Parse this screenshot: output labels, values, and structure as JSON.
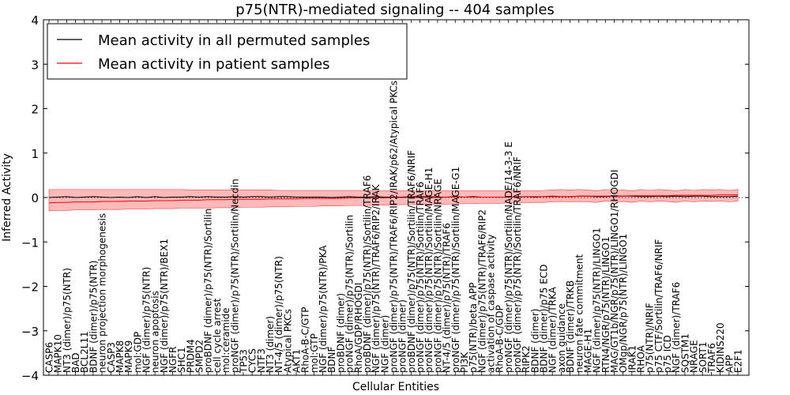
{
  "chart_data": {
    "type": "line",
    "title": "p75(NTR)-mediated signaling -- 404 samples",
    "xlabel": "Cellular Entities",
    "ylabel": "Inferred Activity",
    "ylim": [
      -4,
      4
    ],
    "yticks": [
      -4,
      -3,
      -2,
      -1,
      0,
      1,
      2,
      3,
      4
    ],
    "ytick_labels": [
      "−4",
      "−3",
      "−2",
      "−1",
      "0",
      "1",
      "2",
      "3",
      "4"
    ],
    "grid": false,
    "legend_position": "upper-left",
    "colors": {
      "permuted_line": "#000000",
      "patient_line": "#ff0000",
      "band_fill": "#ff7f7f",
      "zero_line": "#000000"
    },
    "categories": [
      "CASP6",
      "MAPK10",
      "NT3 (dimer)/p75(NTR)",
      "BAD",
      "BCL2L11",
      "BDNF (dimer)/p75(NTR)",
      "neuron projection morphogenesis",
      "CASP3",
      "MAPK8",
      "MAPK9",
      "mol:GDP",
      "NGF (dimer)/p75(NTR)",
      "neuron apoptosis",
      "NGF (dimer)/p75(NTR)/BEX1",
      "NGFR",
      "SHC1",
      "PRDM4",
      "SMPD2",
      "proBDNF (dimer)/p75(NTR)/Sortilin",
      "cell cycle arrest",
      "mol:ceramide",
      "proNGF (dimer)/p75(NTR)/Sortilin/Necdin",
      "TP53",
      "CYCS",
      "NTF3",
      "NT3 (dimer)",
      "NT-4/5 (dimer)/p75(NTR)",
      "Atypical PKCs",
      "AKT1",
      "RhoA-B-C/GTP",
      "mol:GTP",
      "NGF (dimer)/p75(NTR)/PKA",
      "BDNF",
      "proBDNF (dimer)",
      "proNGF (dimer)/p75(NTR)/Sortilin",
      "RhoA/GDP/RHOGDI",
      "proBDNF (dimer)/p75(NTR)/Sortilin/TRAF6",
      "NGF (dimer)/p75(NTR)/TRAF6/RIP2/IRAK",
      "NGF (dimer)",
      "proNGF (dimer)/p75(NTR)/TRAF6/RIP2/IRAK/p62/Atypical PKCs",
      "proNGF (dimer)",
      "proBDNF (dimer)/p75(NTR)/Sortilin/TRAF6/NRIF",
      "proNGF (dimer)/p75(NTR)/Sortilin/TRAF6",
      "proNGF (dimer)/p75(NTR)/Sortilin/MAGE-H1",
      "proNGF (dimer)/p75(NTR)/Sortilin/NRAGE",
      "NT-4/5 (dimer)/p75(NTR)/TRAF6",
      "proNGF (dimer)/p75(NTR)/Sortilin/MAGE-G1",
      "PI3K",
      "p75(NTR)/beta APP",
      "NGF (dimer)/p75(NTR)/TRAF6/RIP2",
      "activation of caspase activity",
      "RhoA-B-C/GDP",
      "proNGF (dimer)/p75(NTR)/Sortilin/NADE/14-3-3 E",
      "proNGF (dimer)/p75(NTR)/Sortilin/TRAF6/NRIF",
      "RIPK2",
      "BDNF (dimer)",
      "BDNF (dimer)/p75 ECD",
      "NGF (dimer)/TRKA",
      "axon guidance",
      "BDNF (dimer)/TRKB",
      "neuron fate commitment",
      "MAGE-H1",
      "NGF (dimer)/p75(NTR)/LINGO1",
      "RTN4/NGR/p75(NTR)/LINGO1",
      "MAG/GT1b/NGR/p75(NTR)/LINGO1/RHOGDI",
      "OMgp/NGR/p75(NTR)/LINGO1",
      "IRAK1",
      "RHOA",
      "p75(NTR)/NRIF",
      "p75 CTF/Sortilin/TRAF6/NRIF",
      "p75 ICD",
      "NGF (dimer)/TRAF6",
      "SQSTM1",
      "NRAGE",
      "SORT1",
      "TRAF6",
      "KIDINS220",
      "APP",
      "E2F1"
    ],
    "series": [
      {
        "name": "Mean activity in all permuted samples",
        "color": "#000000",
        "values": [
          0.0,
          0.01,
          0.02,
          0.0,
          0.01,
          0.02,
          0.01,
          0.0,
          0.01,
          0.0,
          0.02,
          0.0,
          0.02,
          0.0,
          0.01,
          0.01,
          0.02,
          0.01,
          0.02,
          0.01,
          0.01,
          0.02,
          0.01,
          0.02,
          0.02,
          0.01,
          0.02,
          0.02,
          0.01,
          0.01,
          0.01,
          0.01,
          0.0,
          0.01,
          0.02,
          0.01,
          0.01,
          0.02,
          0.01,
          0.01,
          0.01,
          0.02,
          0.02,
          0.02,
          0.01,
          0.01,
          0.02,
          0.01,
          0.02,
          0.01,
          0.01,
          0.01,
          0.01,
          0.01,
          0.02,
          0.01,
          0.02,
          0.03,
          0.02,
          0.02,
          0.03,
          0.03,
          0.02,
          0.02,
          0.03,
          0.03,
          0.03,
          0.02,
          0.02,
          0.03,
          0.02,
          0.03,
          0.02,
          0.03,
          0.03,
          0.02,
          0.02,
          0.02,
          0.03
        ]
      },
      {
        "name": "Mean activity in patient samples",
        "color": "#ff0000",
        "values": [
          -0.12,
          -0.11,
          -0.11,
          -0.1,
          -0.1,
          -0.1,
          -0.09,
          -0.09,
          -0.09,
          -0.08,
          -0.08,
          -0.08,
          -0.07,
          -0.07,
          -0.07,
          -0.06,
          -0.06,
          -0.06,
          -0.05,
          -0.05,
          -0.05,
          -0.04,
          -0.04,
          -0.04,
          -0.04,
          -0.03,
          -0.03,
          -0.03,
          -0.03,
          -0.02,
          -0.02,
          -0.02,
          -0.02,
          -0.02,
          -0.01,
          -0.01,
          -0.01,
          -0.01,
          -0.01,
          0.0,
          0.0,
          0.0,
          0.0,
          0.0,
          0.0,
          0.01,
          0.01,
          0.01,
          0.01,
          0.01,
          0.01,
          0.01,
          0.01,
          0.02,
          0.02,
          0.02,
          0.02,
          0.02,
          0.02,
          0.02,
          0.03,
          0.03,
          0.03,
          0.03,
          0.03,
          0.03,
          0.04,
          0.04,
          0.04,
          0.04,
          0.04,
          0.05,
          0.05,
          0.05,
          0.05,
          0.05,
          0.06,
          0.06,
          0.06
        ]
      }
    ],
    "band": {
      "upper": [
        0.18,
        0.18,
        0.18,
        0.18,
        0.18,
        0.18,
        0.18,
        0.18,
        0.18,
        0.18,
        0.18,
        0.18,
        0.18,
        0.18,
        0.18,
        0.18,
        0.17,
        0.17,
        0.17,
        0.17,
        0.17,
        0.17,
        0.17,
        0.17,
        0.17,
        0.17,
        0.16,
        0.16,
        0.16,
        0.16,
        0.16,
        0.16,
        0.16,
        0.16,
        0.16,
        0.16,
        0.15,
        0.15,
        0.15,
        0.15,
        0.15,
        0.15,
        0.15,
        0.15,
        0.15,
        0.15,
        0.15,
        0.15,
        0.15,
        0.15,
        0.15,
        0.15,
        0.15,
        0.15,
        0.15,
        0.15,
        0.16,
        0.17,
        0.18,
        0.17,
        0.18,
        0.17,
        0.15,
        0.18,
        0.16,
        0.17,
        0.15,
        0.18,
        0.16,
        0.18,
        0.17,
        0.15,
        0.18,
        0.16,
        0.18,
        0.17,
        0.18,
        0.16,
        0.18
      ],
      "lower": [
        -0.3,
        -0.29,
        -0.29,
        -0.28,
        -0.28,
        -0.28,
        -0.27,
        -0.27,
        -0.27,
        -0.26,
        -0.26,
        -0.26,
        -0.25,
        -0.25,
        -0.25,
        -0.24,
        -0.24,
        -0.24,
        -0.24,
        -0.23,
        -0.23,
        -0.23,
        -0.22,
        -0.22,
        -0.22,
        -0.21,
        -0.21,
        -0.21,
        -0.2,
        -0.2,
        -0.2,
        -0.19,
        -0.19,
        -0.19,
        -0.18,
        -0.18,
        -0.18,
        -0.17,
        -0.17,
        -0.17,
        -0.16,
        -0.16,
        -0.16,
        -0.15,
        -0.15,
        -0.15,
        -0.14,
        -0.14,
        -0.14,
        -0.13,
        -0.13,
        -0.13,
        -0.12,
        -0.12,
        -0.12,
        -0.11,
        -0.11,
        -0.1,
        -0.09,
        -0.1,
        -0.09,
        -0.1,
        -0.11,
        -0.08,
        -0.1,
        -0.09,
        -0.11,
        -0.08,
        -0.1,
        -0.08,
        -0.09,
        -0.11,
        -0.08,
        -0.1,
        -0.08,
        -0.09,
        -0.08,
        -0.1,
        -0.08
      ]
    }
  }
}
